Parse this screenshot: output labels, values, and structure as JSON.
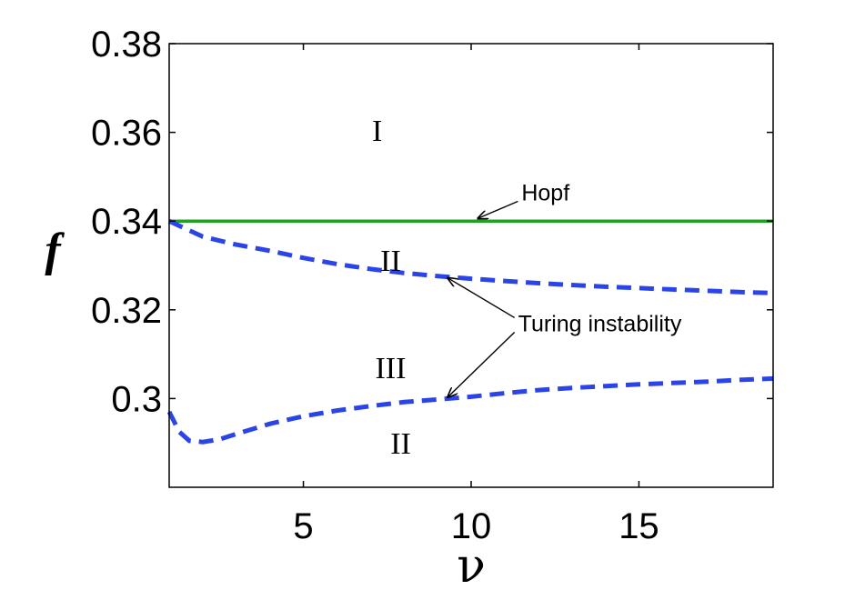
{
  "chart_data": {
    "type": "line",
    "title": "",
    "xlabel": "ν",
    "ylabel": "f",
    "xlim": [
      1,
      19
    ],
    "ylim": [
      0.28,
      0.38
    ],
    "xticks": [
      5,
      10,
      15
    ],
    "xtick_labels": [
      "5",
      "10",
      "15"
    ],
    "yticks": [
      0.3,
      0.32,
      0.34,
      0.36,
      0.38
    ],
    "ytick_labels": [
      "0.3",
      "0.32",
      "0.34",
      "0.36",
      "0.38"
    ],
    "grid": false,
    "series": [
      {
        "style": "solid",
        "color": "#22a022",
        "x": [
          1,
          19
        ],
        "y": [
          0.34,
          0.34
        ]
      },
      {
        "style": "dashed",
        "color": "#2b44e8",
        "x": [
          1,
          2,
          3,
          4,
          5,
          6,
          7,
          8,
          9,
          10,
          11,
          12,
          13,
          14,
          15,
          16,
          17,
          18,
          19
        ],
        "y": [
          0.34,
          0.3365,
          0.3347,
          0.3333,
          0.3317,
          0.3303,
          0.3292,
          0.3283,
          0.3276,
          0.327,
          0.3265,
          0.326,
          0.3256,
          0.3252,
          0.3249,
          0.3246,
          0.3243,
          0.324,
          0.3238
        ]
      },
      {
        "style": "dashed",
        "color": "#2b44e8",
        "x": [
          1,
          1.3,
          1.6,
          2,
          2.5,
          3,
          4,
          5,
          6,
          7,
          8,
          9,
          10,
          11,
          12,
          13,
          14,
          15,
          16,
          17,
          18,
          19
        ],
        "y": [
          0.297,
          0.2925,
          0.2905,
          0.2902,
          0.2908,
          0.292,
          0.2943,
          0.296,
          0.2973,
          0.2983,
          0.2992,
          0.2998,
          0.3004,
          0.3012,
          0.3019,
          0.3024,
          0.3028,
          0.3032,
          0.3035,
          0.3038,
          0.3042,
          0.3045
        ]
      }
    ],
    "region_labels": [
      {
        "text": "I",
        "x": 7.2,
        "y": 0.3605
      },
      {
        "text": "II",
        "x": 7.6,
        "y": 0.3312
      },
      {
        "text": "III",
        "x": 7.6,
        "y": 0.307
      },
      {
        "text": "II",
        "x": 7.9,
        "y": 0.29
      }
    ],
    "annotations": [
      {
        "text": "Hopf",
        "text_x": 11.5,
        "text_y": 0.3465,
        "arrows": [
          {
            "x": 10.2,
            "y": 0.3406
          }
        ]
      },
      {
        "text": "Turing instability",
        "text_x": 11.4,
        "text_y": 0.317,
        "arrows": [
          {
            "x": 9.3,
            "y": 0.3272
          },
          {
            "x": 9.3,
            "y": 0.3003
          }
        ]
      }
    ]
  }
}
